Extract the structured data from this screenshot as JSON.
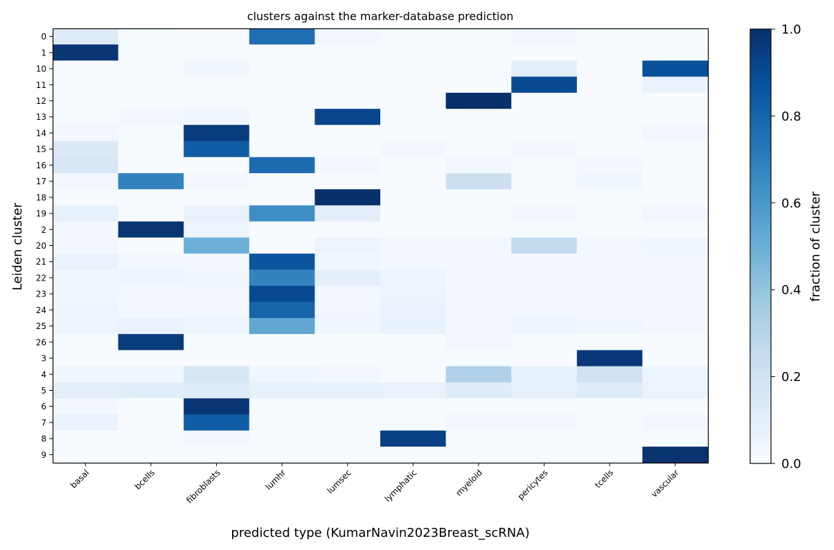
{
  "chart_data": {
    "type": "heatmap",
    "title": "clusters against the marker-database prediction",
    "xlabel": "predicted type (KumarNavin2023Breast_scRNA)",
    "ylabel": "Leiden cluster",
    "colorbar_label": "fraction of cluster",
    "colormap": "Blues",
    "vmin": 0.0,
    "vmax": 1.0,
    "colorbar_ticks": [
      "0.0",
      "0.2",
      "0.4",
      "0.6",
      "0.8",
      "1.0"
    ],
    "x_categories": [
      "basal",
      "bcells",
      "fibroblasts",
      "lumhr",
      "lumsec",
      "lymphatic",
      "myeloid",
      "pericytes",
      "tcells",
      "vascular"
    ],
    "y_categories": [
      "0",
      "1",
      "10",
      "11",
      "12",
      "13",
      "14",
      "15",
      "16",
      "17",
      "18",
      "19",
      "2",
      "20",
      "21",
      "22",
      "23",
      "24",
      "25",
      "26",
      "3",
      "4",
      "5",
      "6",
      "7",
      "8",
      "9"
    ],
    "values": [
      [
        0.13,
        0.01,
        0.0,
        0.76,
        0.02,
        0.01,
        0.01,
        0.03,
        0.01,
        0.01
      ],
      [
        0.98,
        0.01,
        0.0,
        0.0,
        0.01,
        0.0,
        0.01,
        0.0,
        0.0,
        0.0
      ],
      [
        0.0,
        0.0,
        0.04,
        0.0,
        0.0,
        0.0,
        0.0,
        0.1,
        0.0,
        0.88
      ],
      [
        0.0,
        0.0,
        0.0,
        0.0,
        0.0,
        0.0,
        0.0,
        0.9,
        0.0,
        0.07
      ],
      [
        0.0,
        0.0,
        0.0,
        0.0,
        0.0,
        0.0,
        1.0,
        0.0,
        0.0,
        0.0
      ],
      [
        0.01,
        0.02,
        0.04,
        0.0,
        0.92,
        0.01,
        0.01,
        0.0,
        0.0,
        0.0
      ],
      [
        0.03,
        0.01,
        0.96,
        0.0,
        0.0,
        0.0,
        0.0,
        0.0,
        0.0,
        0.03
      ],
      [
        0.14,
        0.0,
        0.83,
        0.0,
        0.0,
        0.02,
        0.0,
        0.02,
        0.0,
        0.0
      ],
      [
        0.16,
        0.0,
        0.0,
        0.77,
        0.02,
        0.0,
        0.03,
        0.0,
        0.02,
        0.0
      ],
      [
        0.03,
        0.68,
        0.02,
        0.01,
        0.0,
        0.0,
        0.22,
        0.0,
        0.04,
        0.0
      ],
      [
        0.0,
        0.0,
        0.0,
        0.0,
        1.0,
        0.0,
        0.0,
        0.0,
        0.0,
        0.0
      ],
      [
        0.08,
        0.0,
        0.07,
        0.64,
        0.1,
        0.0,
        0.01,
        0.02,
        0.0,
        0.03
      ],
      [
        0.02,
        0.98,
        0.05,
        0.0,
        0.0,
        0.0,
        0.0,
        0.0,
        0.0,
        0.0
      ],
      [
        0.03,
        0.0,
        0.5,
        0.0,
        0.06,
        0.03,
        0.03,
        0.26,
        0.02,
        0.04
      ],
      [
        0.07,
        0.02,
        0.02,
        0.86,
        0.04,
        0.02,
        0.02,
        0.02,
        0.02,
        0.02
      ],
      [
        0.04,
        0.05,
        0.04,
        0.68,
        0.09,
        0.05,
        0.02,
        0.03,
        0.02,
        0.02
      ],
      [
        0.04,
        0.02,
        0.02,
        0.9,
        0.02,
        0.06,
        0.02,
        0.02,
        0.02,
        0.02
      ],
      [
        0.05,
        0.03,
        0.03,
        0.8,
        0.03,
        0.07,
        0.02,
        0.03,
        0.02,
        0.02
      ],
      [
        0.05,
        0.07,
        0.05,
        0.53,
        0.04,
        0.08,
        0.02,
        0.05,
        0.04,
        0.02
      ],
      [
        0.01,
        0.96,
        0.0,
        0.0,
        0.0,
        0.0,
        0.03,
        0.0,
        0.0,
        0.0
      ],
      [
        0.0,
        0.0,
        0.0,
        0.0,
        0.0,
        0.0,
        0.0,
        0.0,
        0.97,
        0.0
      ],
      [
        0.04,
        0.04,
        0.16,
        0.04,
        0.03,
        0.0,
        0.32,
        0.08,
        0.2,
        0.05
      ],
      [
        0.1,
        0.11,
        0.13,
        0.08,
        0.08,
        0.07,
        0.12,
        0.08,
        0.12,
        0.06
      ],
      [
        0.02,
        0.0,
        0.98,
        0.0,
        0.0,
        0.01,
        0.0,
        0.0,
        0.0,
        0.0
      ],
      [
        0.07,
        0.0,
        0.83,
        0.0,
        0.0,
        0.01,
        0.03,
        0.02,
        0.01,
        0.03
      ],
      [
        0.0,
        0.0,
        0.03,
        0.0,
        0.0,
        0.94,
        0.0,
        0.0,
        0.0,
        0.0
      ],
      [
        0.0,
        0.0,
        0.0,
        0.0,
        0.0,
        0.0,
        0.0,
        0.0,
        0.0,
        0.99
      ]
    ]
  }
}
